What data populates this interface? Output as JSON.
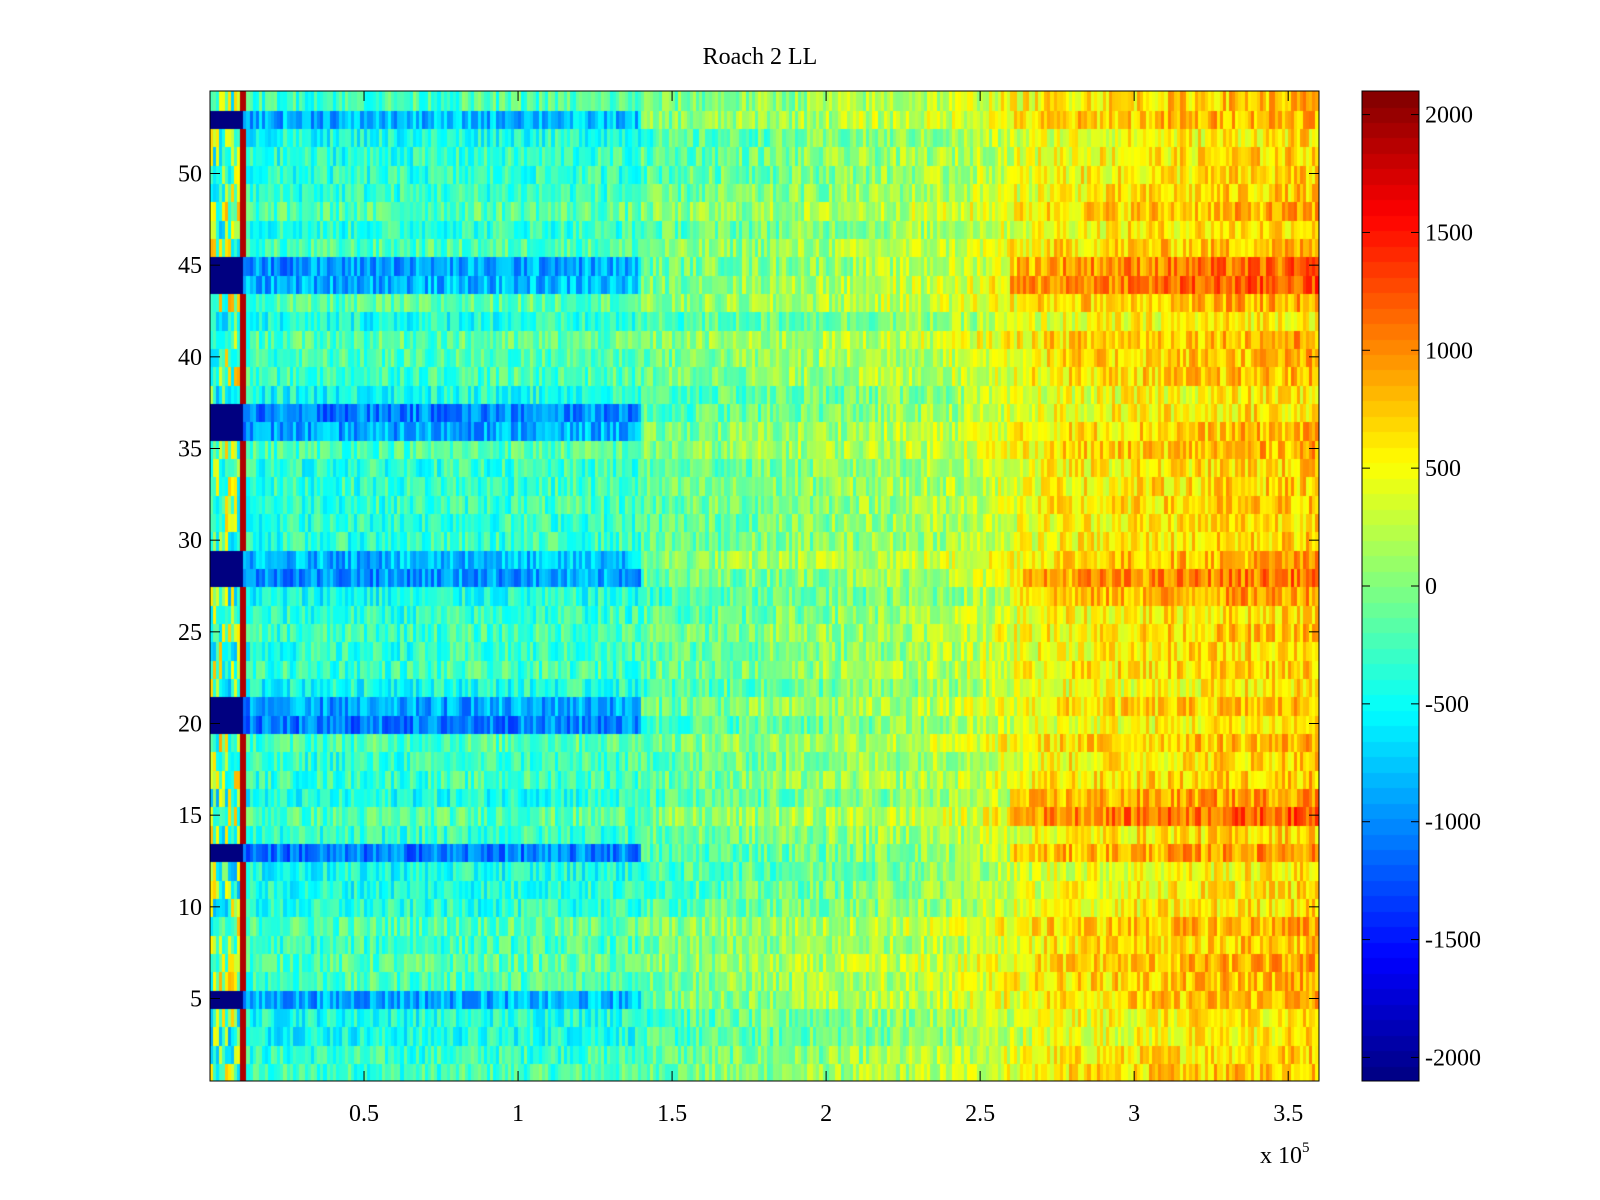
{
  "chart_data": {
    "type": "heatmap",
    "title": "Roach 2 LL",
    "xlabel": "",
    "ylabel": "",
    "x_multiplier_label": {
      "base": "x 10",
      "exponent": "5"
    },
    "xlim": [
      0,
      3.6
    ],
    "ylim": [
      0.5,
      54.5
    ],
    "x_ticks": [
      {
        "value": 0.5,
        "label": "0.5"
      },
      {
        "value": 1.0,
        "label": "1"
      },
      {
        "value": 1.5,
        "label": "1.5"
      },
      {
        "value": 2.0,
        "label": "2"
      },
      {
        "value": 2.5,
        "label": "2.5"
      },
      {
        "value": 3.0,
        "label": "3"
      },
      {
        "value": 3.5,
        "label": "3.5"
      }
    ],
    "y_ticks": [
      {
        "value": 5,
        "label": "5"
      },
      {
        "value": 10,
        "label": "10"
      },
      {
        "value": 15,
        "label": "15"
      },
      {
        "value": 20,
        "label": "20"
      },
      {
        "value": 25,
        "label": "25"
      },
      {
        "value": 30,
        "label": "30"
      },
      {
        "value": 35,
        "label": "35"
      },
      {
        "value": 40,
        "label": "40"
      },
      {
        "value": 45,
        "label": "45"
      },
      {
        "value": 50,
        "label": "50"
      }
    ],
    "colorbar": {
      "colormap": "jet",
      "clim": [
        -2100,
        2100
      ],
      "ticks": [
        {
          "value": 2000,
          "label": "2000"
        },
        {
          "value": 1500,
          "label": "1500"
        },
        {
          "value": 1000,
          "label": "1000"
        },
        {
          "value": 500,
          "label": "500"
        },
        {
          "value": 0,
          "label": "0"
        },
        {
          "value": -500,
          "label": "-500"
        },
        {
          "value": -1000,
          "label": "-1000"
        },
        {
          "value": -1500,
          "label": "-1500"
        },
        {
          "value": -2000,
          "label": "-2000"
        }
      ]
    },
    "rows": 54,
    "columns": 360,
    "x_segments": [
      0,
      0.11,
      1.4,
      2.4,
      2.65,
      2.75,
      3.6
    ],
    "strong_negative_rows": [
      5,
      13,
      20,
      21,
      28,
      29,
      36,
      37,
      44,
      45,
      53
    ],
    "warm_rows": [
      15,
      16,
      44,
      45,
      27,
      28,
      13
    ]
  }
}
